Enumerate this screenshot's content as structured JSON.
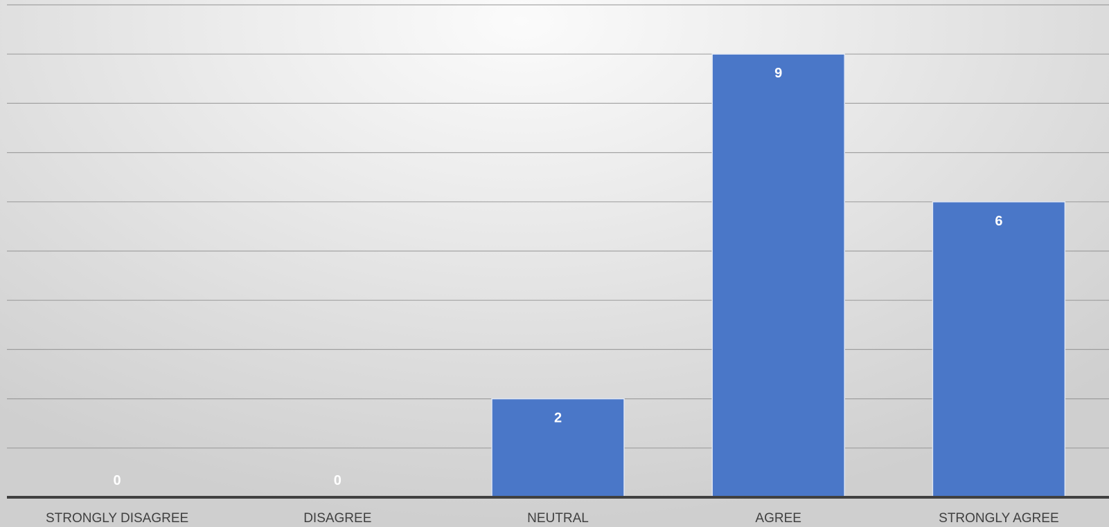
{
  "chart_data": {
    "type": "bar",
    "title": "",
    "xlabel": "",
    "ylabel": "",
    "categories": [
      "STRONGLY DISAGREE",
      "DISAGREE",
      "NEUTRAL",
      "AGREE",
      "STRONGLY AGREE"
    ],
    "values": [
      0,
      0,
      2,
      9,
      6
    ],
    "ylim": [
      0,
      10
    ],
    "grid_step": 1,
    "grid": true,
    "legend": "none",
    "data_labels": true,
    "colors": {
      "bar": "#4a77c8",
      "bar_border": "#dfe6f2",
      "gridline": "#8c8c8c",
      "axis": "#404040",
      "data_label": "#ffffff",
      "tick_label": "#404040"
    }
  }
}
